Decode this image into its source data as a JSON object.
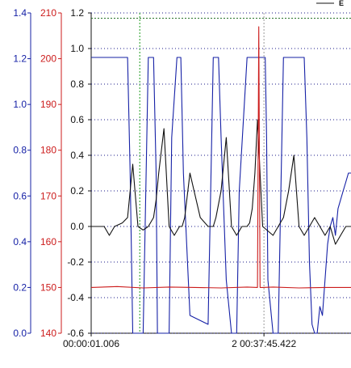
{
  "chart_data": {
    "type": "line",
    "title": "",
    "legend": {
      "label": "E",
      "placement": "top-right"
    },
    "grid": true,
    "colors": {
      "blue": "#1520a6",
      "red": "#cc1b1b",
      "black": "#111111",
      "green": "#1a9a1a",
      "grid": "#1a1a8a"
    },
    "axes": {
      "left_blue": {
        "ylim": [
          0.0,
          1.4
        ],
        "ticks": [
          "0.0",
          "0.2",
          "0.4",
          "0.6",
          "0.8",
          "1.0",
          "1.2",
          "1.4"
        ]
      },
      "left_red": {
        "ylim": [
          140,
          210
        ],
        "ticks": [
          "140",
          "150",
          "160",
          "170",
          "180",
          "190",
          "200",
          "210"
        ]
      },
      "main": {
        "ylim": [
          -0.6,
          1.2
        ],
        "ticks": [
          "-0.6",
          "-0.4",
          "-0.2",
          "0.0",
          "0.2",
          "0.4",
          "0.6",
          "0.8",
          "1.0",
          "1.2"
        ]
      }
    },
    "x_ticks": [
      "00:00:01.006",
      "2 00:37:45.422"
    ],
    "markers": [
      {
        "name": "green-cursor",
        "x": 0.187,
        "color": "green"
      },
      {
        "name": "gray-cursor",
        "x": 0.665,
        "color": "gray"
      }
    ],
    "reference_lines": [
      {
        "name": "top-reference",
        "y": 1.17
      }
    ],
    "series": [
      {
        "color": "blue",
        "axis": "main",
        "x": [
          0,
          0.01,
          0.02,
          0.05,
          0.14,
          0.15,
          0.16,
          0.165,
          0.2,
          0.22,
          0.24,
          0.25,
          0.255,
          0.3,
          0.31,
          0.33,
          0.345,
          0.355,
          0.38,
          0.45,
          0.46,
          0.47,
          0.48,
          0.49,
          0.5,
          0.52,
          0.54,
          0.56,
          0.57,
          0.6,
          0.64,
          0.67,
          0.675,
          0.68,
          0.7,
          0.72,
          0.73,
          0.74,
          0.75,
          0.78,
          0.82,
          0.83,
          0.84,
          0.85,
          0.86,
          0.87,
          0.88,
          0.89,
          0.9,
          0.91,
          0.92,
          0.93,
          0.94,
          0.95,
          0.96,
          0.97,
          0.98,
          0.99,
          1.0
        ],
        "y": [
          0.95,
          0.95,
          0.95,
          0.95,
          0.95,
          0.3,
          -0.6,
          -0.6,
          -0.6,
          0.95,
          0.95,
          0.3,
          -0.6,
          -0.6,
          0.5,
          0.95,
          0.95,
          0.3,
          -0.5,
          -0.55,
          0.2,
          0.95,
          0.95,
          0.95,
          0.5,
          -0.3,
          -0.6,
          -0.6,
          0.2,
          0.95,
          0.95,
          0.95,
          0.5,
          -0.3,
          -0.6,
          -0.6,
          0.2,
          0.95,
          0.95,
          0.95,
          0.95,
          0.5,
          -0.2,
          -0.55,
          -0.6,
          -0.6,
          -0.45,
          -0.5,
          -0.3,
          -0.1,
          0.0,
          0.05,
          -0.05,
          0.1,
          0.15,
          0.2,
          0.25,
          0.3,
          0.3
        ]
      },
      {
        "color": "black",
        "axis": "main",
        "x": [
          0,
          0.05,
          0.07,
          0.09,
          0.12,
          0.14,
          0.15,
          0.16,
          0.18,
          0.2,
          0.22,
          0.24,
          0.25,
          0.26,
          0.28,
          0.3,
          0.32,
          0.34,
          0.35,
          0.36,
          0.38,
          0.42,
          0.45,
          0.47,
          0.48,
          0.5,
          0.52,
          0.54,
          0.56,
          0.58,
          0.6,
          0.61,
          0.62,
          0.63,
          0.64,
          0.66,
          0.7,
          0.72,
          0.74,
          0.76,
          0.78,
          0.8,
          0.82,
          0.84,
          0.86,
          0.88,
          0.9,
          0.92,
          0.94,
          0.96,
          0.98,
          1.0
        ],
        "y": [
          0.0,
          0.0,
          -0.05,
          0.0,
          0.02,
          0.05,
          0.2,
          0.35,
          0.0,
          -0.02,
          0.0,
          0.05,
          0.15,
          0.3,
          0.55,
          0.0,
          -0.05,
          0.0,
          0.0,
          0.05,
          0.3,
          0.05,
          0.0,
          0.0,
          0.05,
          0.2,
          0.5,
          0.0,
          -0.05,
          0.0,
          0.0,
          0.02,
          0.1,
          0.3,
          0.6,
          0.0,
          -0.05,
          0.0,
          0.05,
          0.2,
          0.4,
          0.0,
          -0.05,
          0.0,
          0.05,
          0.0,
          -0.05,
          0.0,
          -0.1,
          -0.05,
          0.0,
          0.0
        ]
      },
      {
        "color": "red",
        "axis": "left_red",
        "x": [
          0,
          0.1,
          0.2,
          0.3,
          0.4,
          0.5,
          0.6,
          0.64,
          0.645,
          0.65,
          0.66,
          0.7,
          0.8,
          0.9,
          1.0
        ],
        "y": [
          150,
          150.2,
          149.9,
          150.1,
          150,
          149.9,
          150.1,
          150,
          207,
          150,
          150,
          150.1,
          149.9,
          150,
          150
        ]
      }
    ]
  }
}
